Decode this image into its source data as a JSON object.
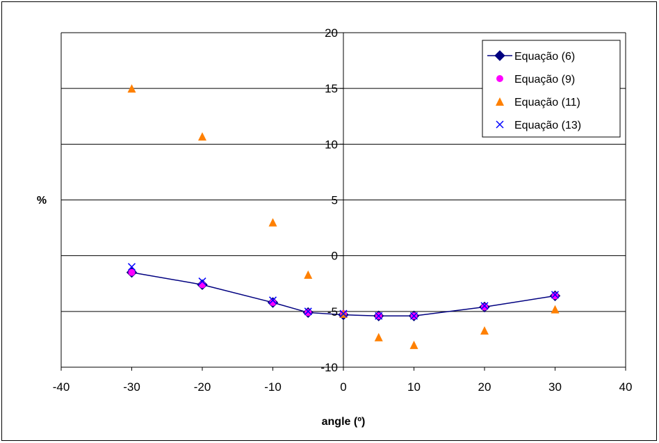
{
  "chart_data": {
    "type": "scatter",
    "xlabel": "angle (º)",
    "ylabel": "%",
    "xlim": [
      -40,
      40
    ],
    "ylim": [
      -10,
      20
    ],
    "x_ticks": [
      "-40",
      "-30",
      "-20",
      "-10",
      "0",
      "10",
      "20",
      "30",
      "40"
    ],
    "y_ticks": [
      "20",
      "15",
      "10",
      "5",
      "0",
      "-5",
      "-10"
    ],
    "grid": "horizontal",
    "legend_position": "top-right",
    "series": [
      {
        "name": "Equação (6)",
        "marker": "diamond",
        "line": true,
        "color": "#000080",
        "x": [
          -30,
          -20,
          -10,
          -5,
          0,
          5,
          10,
          20,
          30
        ],
        "y": [
          -1.5,
          -2.6,
          -4.2,
          -5.1,
          -5.3,
          -5.4,
          -5.4,
          -4.6,
          -3.6
        ]
      },
      {
        "name": "Equação (9)",
        "marker": "circle",
        "line": false,
        "color": "#ff00ff",
        "x": [
          -30,
          -20,
          -10,
          -5,
          0,
          5,
          10,
          20,
          30
        ],
        "y": [
          -1.5,
          -2.6,
          -4.2,
          -5.1,
          -5.2,
          -5.4,
          -5.4,
          -4.6,
          -3.6
        ]
      },
      {
        "name": "Equação (11)",
        "marker": "triangle",
        "line": false,
        "color": "#ff8000",
        "x": [
          -30,
          -20,
          -10,
          -5,
          0,
          5,
          10,
          20,
          30
        ],
        "y": [
          15.0,
          10.7,
          3.0,
          -1.7,
          -5.2,
          -7.3,
          -8.0,
          -6.7,
          -4.8
        ]
      },
      {
        "name": "Equação (13)",
        "marker": "x",
        "line": false,
        "color": "#0000ff",
        "x": [
          -30,
          -20,
          -10,
          -5,
          0,
          5,
          10,
          20,
          30
        ],
        "y": [
          -1.0,
          -2.3,
          -4.0,
          -5.0,
          -5.2,
          -5.4,
          -5.4,
          -4.5,
          -3.5
        ]
      }
    ]
  }
}
